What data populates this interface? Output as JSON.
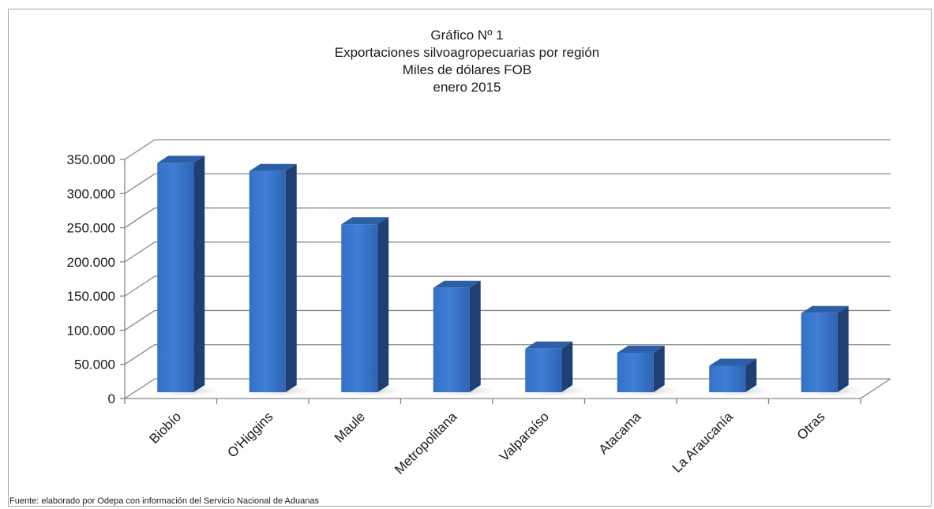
{
  "chart_data": {
    "type": "bar",
    "title_lines": [
      "Gráfico Nº 1",
      "Exportaciones silvoagropecuarias por región",
      "Miles de dólares FOB",
      "enero  2015"
    ],
    "categories": [
      "Biobío",
      "O'Higgins",
      "Maule",
      "Metropolitana",
      "Valparaíso",
      "Atacama",
      "La Araucanía",
      "Otras"
    ],
    "values": [
      345000,
      333000,
      255000,
      162000,
      73000,
      67000,
      48000,
      125000
    ],
    "yticks": [
      "0",
      "50.000",
      "100.000",
      "150.000",
      "200.000",
      "250.000",
      "300.000",
      "350.000"
    ],
    "ylim": [
      0,
      350000
    ],
    "grid": true,
    "style": "3d-column",
    "colors": {
      "bar_front": "#3f7fd6",
      "bar_side": "#1d3f73",
      "bar_top": "#2c5fa8",
      "grid": "#868686"
    }
  },
  "source_note": "Fuente:  elaborado  por  Odepa con información del Servicio Nacional de Aduanas"
}
